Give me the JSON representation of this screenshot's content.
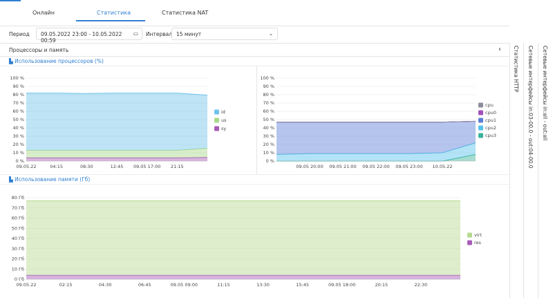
{
  "tabs": [
    "Онлайн",
    "Статистика",
    "Статистика NAT"
  ],
  "filters": {
    "period_label": "Период",
    "period_value": "09.05.2022 23:00 - 10.05.2022 00:59",
    "interval_label": "Интервал",
    "interval_value": "15 минут"
  },
  "panel_title": "Процессоры и память",
  "side_tabs": [
    "Статистика HTTP",
    "Сетевые интерфейсы in:03-00.0 - out:04-00.0",
    "Сетевые интерфейсы in:all - out:all"
  ],
  "sections": [
    "Использование процессоров (%)",
    "Использование памяти (Гб)"
  ],
  "charts": [
    {
      "type": "area",
      "stacked": true,
      "grid": true,
      "categories": [
        "09.05.22",
        "04:15",
        "08:30",
        "12:45",
        "09.05 17:00",
        "21:15",
        null
      ],
      "series": [
        {
          "name": "id",
          "color": "#6fc3ec",
          "values": [
            69,
            69,
            68.5,
            69,
            69,
            69,
            64
          ]
        },
        {
          "name": "us",
          "color": "#a8d88a",
          "values": [
            9,
            9,
            9,
            9,
            9,
            9,
            11
          ]
        },
        {
          "name": "sy",
          "color": "#a65cb8",
          "values": [
            4,
            4,
            4,
            4,
            4,
            4,
            4.5
          ]
        }
      ],
      "ylim": [
        0,
        100
      ],
      "yticks": [
        {
          "value": 0,
          "label": "0 %"
        },
        {
          "value": 10,
          "label": "10 %"
        },
        {
          "value": 20,
          "label": "20 %"
        },
        {
          "value": 30,
          "label": "30 %"
        },
        {
          "value": 40,
          "label": "40 %"
        },
        {
          "value": 50,
          "label": "50 %"
        },
        {
          "value": 60,
          "label": "60 %"
        },
        {
          "value": 70,
          "label": "70 %"
        },
        {
          "value": 80,
          "label": "80 %"
        },
        {
          "value": 90,
          "label": "90 %"
        },
        {
          "value": 100,
          "label": "100 %"
        }
      ]
    },
    {
      "type": "area",
      "stacked": true,
      "grid": true,
      "categories": [
        null,
        "09.05 20:00",
        "09.05 21:00",
        "09.05 22:00",
        "09.05 23:00",
        "10.05.22",
        null
      ],
      "series": [
        {
          "name": "cpu",
          "color": "#8c8c9c",
          "values": [
            0,
            0,
            0,
            0,
            0,
            0,
            0
          ]
        },
        {
          "name": "cpu0",
          "color": "#a04fb7",
          "values": [
            0,
            0,
            0,
            0,
            0,
            0,
            0
          ]
        },
        {
          "name": "cpu1",
          "color": "#5b7fd6",
          "values": [
            39,
            38,
            38,
            38,
            38,
            37,
            26
          ]
        },
        {
          "name": "cpu2",
          "color": "#56c1ec",
          "values": [
            8,
            9,
            9,
            9,
            9,
            10,
            14
          ]
        },
        {
          "name": "cpu3",
          "color": "#3bb39a",
          "values": [
            0,
            0,
            0,
            0,
            0,
            0,
            8
          ]
        }
      ],
      "ylim": [
        0,
        100
      ],
      "yticks": [
        {
          "value": 0,
          "label": "0 %"
        },
        {
          "value": 10,
          "label": "10 %"
        },
        {
          "value": 20,
          "label": "20 %"
        },
        {
          "value": 30,
          "label": "30 %"
        },
        {
          "value": 40,
          "label": "40 %"
        },
        {
          "value": 50,
          "label": "50 %"
        },
        {
          "value": 60,
          "label": "60 %"
        },
        {
          "value": 70,
          "label": "70 %"
        },
        {
          "value": 80,
          "label": "80 %"
        },
        {
          "value": 90,
          "label": "90 %"
        },
        {
          "value": 100,
          "label": "100 %"
        }
      ]
    },
    {
      "type": "area",
      "stacked": true,
      "grid": true,
      "categories": [
        "09.05.22",
        "02:15",
        "04:30",
        "06:45",
        "09.05 09:00",
        "11:15",
        "13:30",
        "15:45",
        "09.05 18:00",
        "20:15",
        "22:30",
        null
      ],
      "series": [
        {
          "name": "virt",
          "color": "#b5d98f",
          "values": [
            73,
            73,
            73,
            73,
            73,
            73,
            73,
            73,
            73,
            73,
            73,
            73
          ]
        },
        {
          "name": "res",
          "color": "#a65cb8",
          "values": [
            4,
            4,
            4,
            4,
            4,
            4,
            4,
            4,
            4,
            4,
            4,
            4
          ]
        }
      ],
      "ylim": [
        0,
        80
      ],
      "yticks": [
        {
          "value": 0,
          "label": "0 Гб"
        },
        {
          "value": 10,
          "label": "10 Гб"
        },
        {
          "value": 20,
          "label": "20 Гб"
        },
        {
          "value": 30,
          "label": "30 Гб"
        },
        {
          "value": 40,
          "label": "40 Гб"
        },
        {
          "value": 50,
          "label": "50 Гб"
        },
        {
          "value": 60,
          "label": "60 Гб"
        },
        {
          "value": 70,
          "label": "70 Гб"
        },
        {
          "value": 80,
          "label": "80 Гб"
        }
      ]
    }
  ]
}
